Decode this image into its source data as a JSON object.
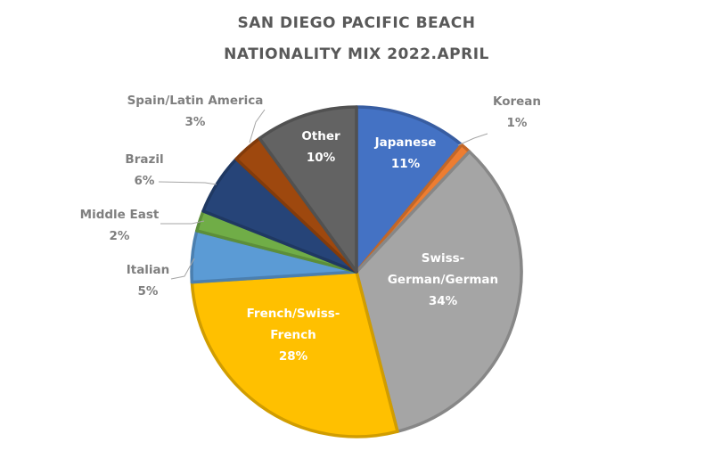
{
  "chart_data": {
    "type": "pie",
    "title_line1": "SAN DIEGO PACIFIC BEACH",
    "title_line2": "NATIONALITY MIX 2022.APRIL",
    "slices": [
      {
        "label": [
          "Japanese"
        ],
        "pct_text": "11%",
        "value": 11,
        "color": "#4472c4"
      },
      {
        "label": [
          "Korean"
        ],
        "pct_text": "1%",
        "value": 1,
        "color": "#ed7d31"
      },
      {
        "label": [
          "Swiss-",
          "German/German"
        ],
        "pct_text": "34%",
        "value": 34,
        "color": "#a5a5a5"
      },
      {
        "label": [
          "French/Swiss-",
          "French"
        ],
        "pct_text": "28%",
        "value": 28,
        "color": "#ffc000"
      },
      {
        "label": [
          "Italian"
        ],
        "pct_text": "5%",
        "value": 5,
        "color": "#5b9bd5"
      },
      {
        "label": [
          "Middle East"
        ],
        "pct_text": "2%",
        "value": 2,
        "color": "#70ad47"
      },
      {
        "label": [
          "Brazil"
        ],
        "pct_text": "6%",
        "value": 6,
        "color": "#264478"
      },
      {
        "label": [
          "Spain/Latin America"
        ],
        "pct_text": "3%",
        "value": 3,
        "color": "#9e480e"
      },
      {
        "label": [
          "Other"
        ],
        "pct_text": "10%",
        "value": 10,
        "color": "#636363"
      }
    ]
  }
}
